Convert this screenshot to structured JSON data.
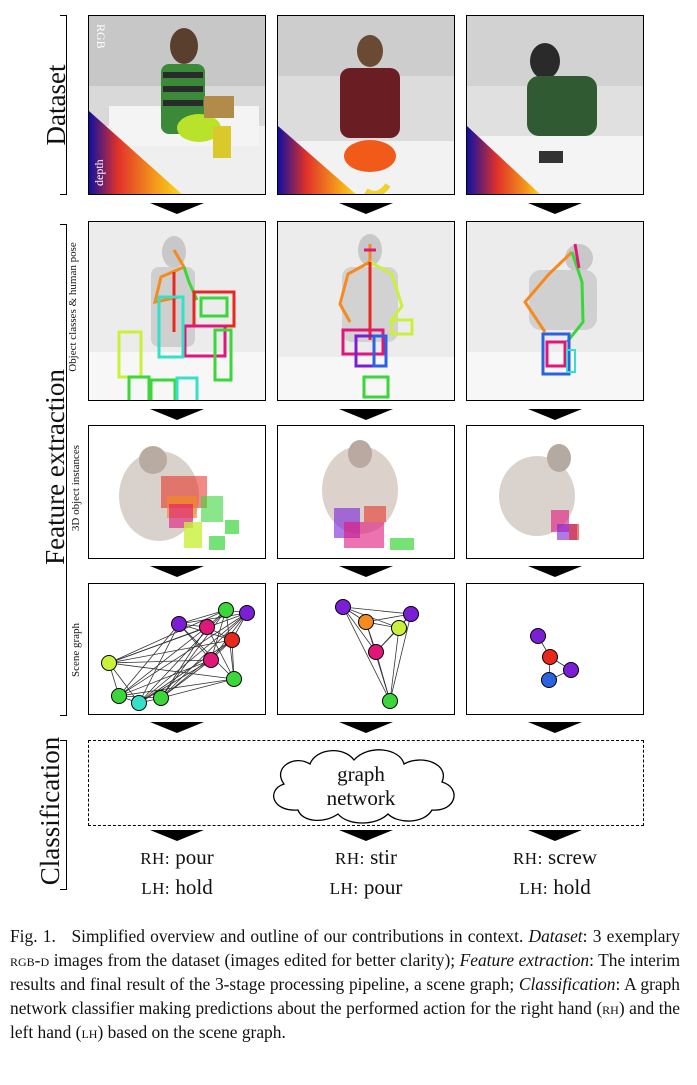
{
  "sections": {
    "dataset": "Dataset",
    "feature_extraction": "Feature extraction",
    "classification": "Classification"
  },
  "row_labels": {
    "object_classes": "Object classes & human pose",
    "object_instances": "3D object instances",
    "scene_graph": "Scene graph"
  },
  "dataset_row": {
    "rgb_label": "RGB",
    "depth_label": "depth"
  },
  "classifier": {
    "line1": "graph",
    "line2": "network"
  },
  "predictions": [
    {
      "rh_tag": "RH:",
      "rh_action": "pour",
      "lh_tag": "LH:",
      "lh_action": "hold"
    },
    {
      "rh_tag": "RH:",
      "rh_action": "stir",
      "lh_tag": "LH:",
      "lh_action": "pour"
    },
    {
      "rh_tag": "RH:",
      "rh_action": "screw",
      "lh_tag": "LH:",
      "lh_action": "hold"
    }
  ],
  "caption": {
    "fig": "Fig. 1.",
    "intro": "Simplified overview and outline of our contributions in context.",
    "dataset_term": "Dataset",
    "dataset_text_a": ": 3 exemplary",
    "rgbd": "rgb-d",
    "dataset_text_b": "images from the dataset (images edited for better clarity);",
    "feature_term": "Feature extraction",
    "feature_text": ": The interim results and final result of the 3-stage processing pipeline, a scene graph;",
    "class_term": "Classification",
    "class_text_a": ": A graph network classifier making predictions about the performed action for the right hand (",
    "rh": "rh",
    "class_text_b": ") and the left hand (",
    "lh": "lh",
    "class_text_c": ") based on the scene graph."
  },
  "colors": {
    "node_purple": "#7a1fd6",
    "node_magenta": "#e0167a",
    "node_red": "#e8281c",
    "node_orange": "#f58a1f",
    "node_yellowgreen": "#c9f03a",
    "node_green": "#3ad63a",
    "node_cyan": "#34e0c8",
    "node_blue": "#2a62e0"
  }
}
